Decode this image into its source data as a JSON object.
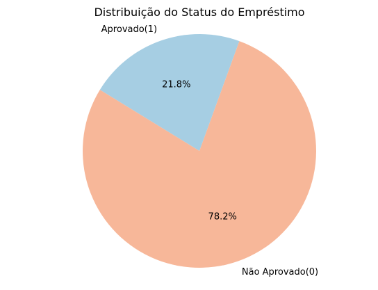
{
  "chart_data": {
    "type": "pie",
    "title": "Distribuição do Status do Empréstimo",
    "start_angle_deg": 70,
    "direction": "counterclockwise",
    "slices": [
      {
        "label": "Aprovado(1)",
        "value": 21.8,
        "pct_label": "21.8%",
        "color": "#a6cee3"
      },
      {
        "label": "Não Aprovado(0)",
        "value": 78.2,
        "pct_label": "78.2%",
        "color": "#f7b799"
      }
    ]
  }
}
